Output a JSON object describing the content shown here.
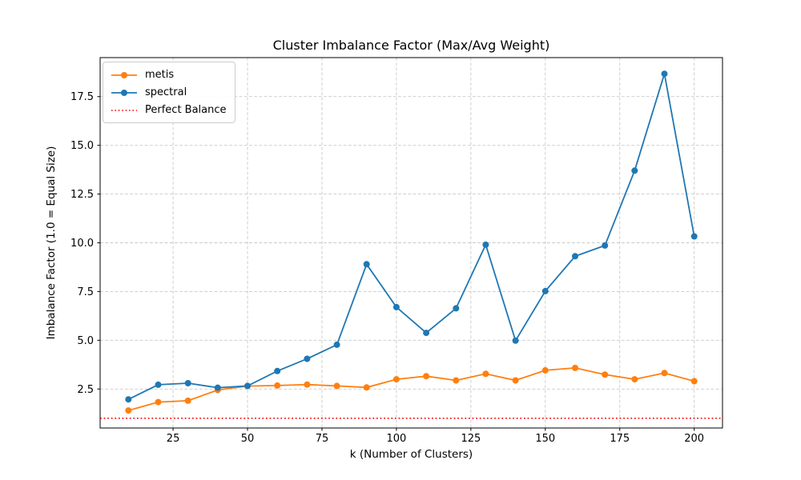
{
  "chart_data": {
    "type": "line",
    "title": "Cluster Imbalance Factor (Max/Avg Weight)",
    "xlabel": "k (Number of Clusters)",
    "ylabel": "Imbalance Factor (1.0 = Equal Size)",
    "x": [
      10,
      20,
      30,
      40,
      50,
      60,
      70,
      80,
      90,
      100,
      110,
      120,
      130,
      140,
      150,
      160,
      170,
      180,
      190,
      200
    ],
    "series": [
      {
        "name": "metis",
        "color": "#ff7f0e",
        "marker": "circle",
        "values": [
          1.4,
          1.83,
          1.9,
          2.45,
          2.65,
          2.68,
          2.73,
          2.66,
          2.58,
          3.0,
          3.16,
          2.94,
          3.28,
          2.94,
          3.46,
          3.58,
          3.24,
          3.0,
          3.32,
          2.9
        ]
      },
      {
        "name": "spectral",
        "color": "#1f77b4",
        "marker": "circle",
        "values": [
          1.97,
          2.72,
          2.8,
          2.57,
          2.66,
          3.42,
          4.05,
          4.77,
          8.9,
          6.7,
          5.38,
          6.64,
          9.9,
          4.98,
          7.52,
          9.31,
          9.86,
          13.7,
          18.67,
          10.33
        ]
      }
    ],
    "reference_line": {
      "label": "Perfect Balance",
      "value": 1.0,
      "color": "#ff0000",
      "style": "dotted"
    },
    "legend": {
      "position": "upper-left",
      "entries": [
        "metis",
        "spectral",
        "Perfect Balance"
      ]
    },
    "xticks": [
      25,
      50,
      75,
      100,
      125,
      150,
      175,
      200
    ],
    "yticks": [
      2.5,
      5.0,
      7.5,
      10.0,
      12.5,
      15.0,
      17.5
    ],
    "xlim": [
      0.5,
      209.5
    ],
    "ylim": [
      0.5,
      19.5
    ],
    "grid": true,
    "grid_style": "dashed",
    "grid_color": "#c9c9c9",
    "spine_color": "#000000"
  }
}
